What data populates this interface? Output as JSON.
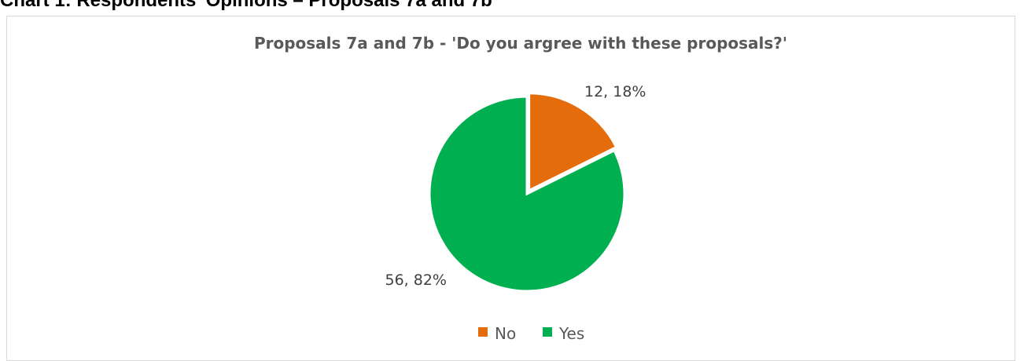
{
  "page": {
    "heading": "Chart 1: Respondents' Opinions – Proposals 7a and 7b"
  },
  "chart_data": {
    "type": "pie",
    "title": "Proposals 7a and 7b - 'Do you argree with these proposals?'",
    "slices": [
      {
        "name": "No",
        "value": 12,
        "percent": 18,
        "label": "12, 18%",
        "color": "#E46C0A"
      },
      {
        "name": "Yes",
        "value": 56,
        "percent": 82,
        "label": "56, 82%",
        "color": "#00B050"
      }
    ],
    "legend": {
      "position": "bottom",
      "entries": [
        "No",
        "Yes"
      ]
    }
  }
}
